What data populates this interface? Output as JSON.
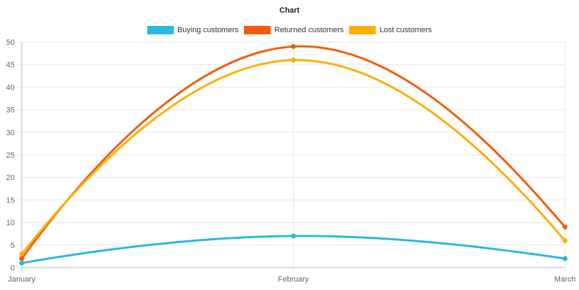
{
  "chart_data": {
    "type": "line",
    "title": "Chart",
    "categories": [
      "January",
      "February",
      "March"
    ],
    "series": [
      {
        "name": "Buying customers",
        "color": "#29b8e0",
        "values": [
          1,
          7,
          2
        ]
      },
      {
        "name": "Returned customers",
        "color": "#f35b0a",
        "values": [
          2,
          49,
          9
        ]
      },
      {
        "name": "Lost customers",
        "color": "#ffae00",
        "values": [
          3,
          46,
          6
        ]
      }
    ],
    "xlabel": "",
    "ylabel": "",
    "ylim": [
      0,
      50
    ],
    "yticks": [
      0,
      5,
      10,
      15,
      20,
      25,
      30,
      35,
      40,
      45,
      50
    ],
    "grid": true,
    "legend_position": "top",
    "smooth": true
  }
}
